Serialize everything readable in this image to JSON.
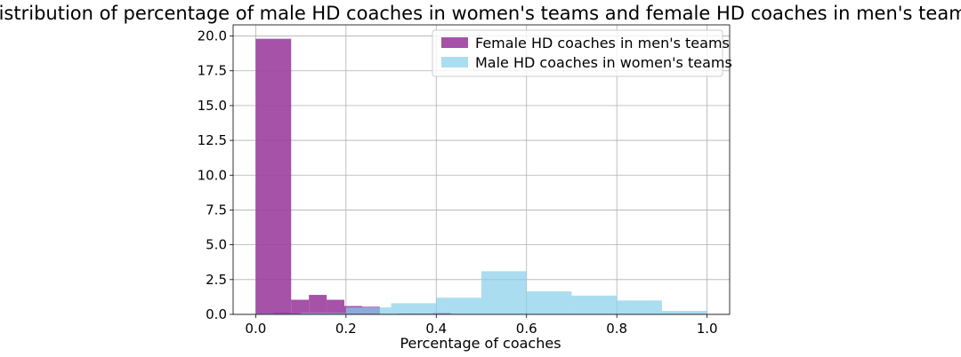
{
  "chart_data": {
    "type": "bar",
    "title": "Distribution of percentage of male HD coaches in women's teams and female HD coaches in men's teams",
    "xlabel": "Percentage of coaches",
    "ylabel": "",
    "xlim": [
      -0.05,
      1.05
    ],
    "ylim": [
      0,
      20.8
    ],
    "xticks": [
      0.0,
      0.2,
      0.4,
      0.6,
      0.8,
      1.0
    ],
    "xtick_labels": [
      "0.0",
      "0.2",
      "0.4",
      "0.6",
      "0.8",
      "1.0"
    ],
    "yticks": [
      0.0,
      2.5,
      5.0,
      7.5,
      10.0,
      12.5,
      15.0,
      17.5,
      20.0
    ],
    "ytick_labels": [
      "0.0",
      "2.5",
      "5.0",
      "7.5",
      "10.0",
      "12.5",
      "15.0",
      "17.5",
      "20.0"
    ],
    "grid": true,
    "legend_position": "top-right",
    "series": [
      {
        "name": "Female HD coaches in men's teams",
        "color": "#9b3f9e",
        "alpha": 0.9,
        "bins": [
          {
            "x0": 0.0,
            "x1": 0.0786,
            "value": 19.8
          },
          {
            "x0": 0.0786,
            "x1": 0.1571,
            "value": 1.05
          },
          {
            "x0": 0.1571,
            "x1": 0.2357,
            "value": 1.05
          },
          {
            "x0": 0.2357,
            "x1": 0.3143,
            "value": 0.55
          },
          {
            "x0": 0.3143,
            "x1": 0.3929,
            "value": 0.05
          },
          {
            "x0": 0.3929,
            "x1": 0.4714,
            "value": 0.1
          },
          {
            "x0": 0.4714,
            "x1": 0.55,
            "value": 0.0
          }
        ],
        "extra_bins_narrow": [
          {
            "x0": 0.0393,
            "x1": 0.0786,
            "value": 0.12
          },
          {
            "x0": 0.0786,
            "x1": 0.1179,
            "value": 1.05
          },
          {
            "x0": 0.1179,
            "x1": 0.1571,
            "value": 1.4
          },
          {
            "x0": 0.1571,
            "x1": 0.1964,
            "value": 1.05
          },
          {
            "x0": 0.1964,
            "x1": 0.2357,
            "value": 0.6
          },
          {
            "x0": 0.2357,
            "x1": 0.275,
            "value": 0.55
          },
          {
            "x0": 0.275,
            "x1": 0.3143,
            "value": 0.0
          },
          {
            "x0": 0.3143,
            "x1": 0.3536,
            "value": 0.05
          },
          {
            "x0": 0.3536,
            "x1": 0.3929,
            "value": 0.05
          },
          {
            "x0": 0.3929,
            "x1": 0.4321,
            "value": 0.1
          }
        ]
      },
      {
        "name": "Male HD coaches in women's teams",
        "color": "#87ceeb",
        "alpha": 0.7,
        "bins": [
          {
            "x0": 0.0,
            "x1": 0.1,
            "value": 0.05
          },
          {
            "x0": 0.1,
            "x1": 0.2,
            "value": 0.1
          },
          {
            "x0": 0.2,
            "x1": 0.3,
            "value": 0.5
          },
          {
            "x0": 0.3,
            "x1": 0.4,
            "value": 0.8
          },
          {
            "x0": 0.4,
            "x1": 0.5,
            "value": 1.2
          },
          {
            "x0": 0.5,
            "x1": 0.6,
            "value": 3.1
          },
          {
            "x0": 0.6,
            "x1": 0.7,
            "value": 1.65
          },
          {
            "x0": 0.7,
            "x1": 0.8,
            "value": 1.35
          },
          {
            "x0": 0.8,
            "x1": 0.9,
            "value": 1.0
          },
          {
            "x0": 0.9,
            "x1": 1.0,
            "value": 0.25
          }
        ]
      }
    ]
  }
}
